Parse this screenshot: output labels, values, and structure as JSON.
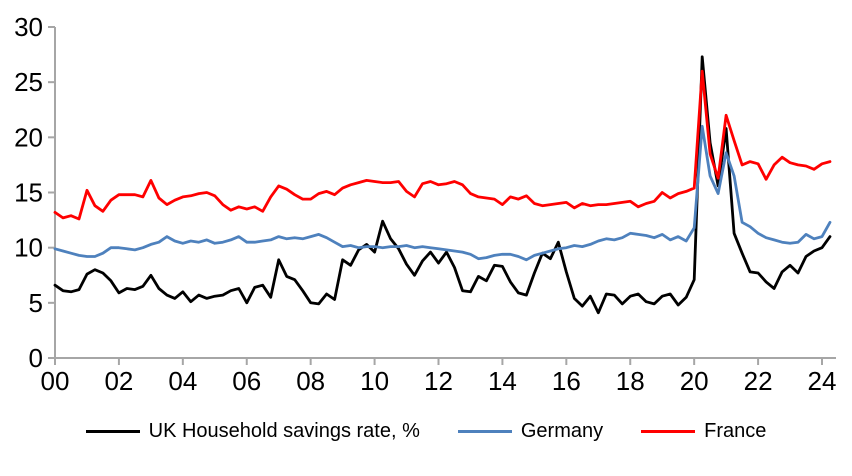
{
  "chart_data": {
    "type": "line",
    "title": "",
    "xlabel": "",
    "ylabel": "",
    "grid": false,
    "legend_position": "bottom",
    "ylim": [
      0,
      30
    ],
    "y_ticks": [
      0,
      5,
      10,
      15,
      20,
      25,
      30
    ],
    "x_tick_labels": [
      "00",
      "02",
      "04",
      "06",
      "08",
      "10",
      "12",
      "14",
      "16",
      "18",
      "20",
      "22",
      "24"
    ],
    "x_start_year": 2000,
    "x_frequency": "quarterly",
    "axis_color": "#a6a6a6",
    "series": [
      {
        "name": "UK Household savings rate, %",
        "color": "#000000",
        "values": [
          6.6,
          6.1,
          6.0,
          6.2,
          7.6,
          8.0,
          7.7,
          7.0,
          5.9,
          6.3,
          6.2,
          6.5,
          7.5,
          6.3,
          5.7,
          5.4,
          6.0,
          5.1,
          5.7,
          5.4,
          5.6,
          5.7,
          6.1,
          6.3,
          5.0,
          6.4,
          6.6,
          5.5,
          8.9,
          7.4,
          7.1,
          6.1,
          5.0,
          4.9,
          5.8,
          5.3,
          8.9,
          8.4,
          9.8,
          10.3,
          9.6,
          12.4,
          10.8,
          9.9,
          8.5,
          7.5,
          8.8,
          9.6,
          8.6,
          9.6,
          8.2,
          6.1,
          6.0,
          7.4,
          7.0,
          8.4,
          8.3,
          6.9,
          5.9,
          5.7,
          7.7,
          9.5,
          9.0,
          10.5,
          7.8,
          5.4,
          4.7,
          5.6,
          4.1,
          5.8,
          5.7,
          4.9,
          5.6,
          5.8,
          5.1,
          4.9,
          5.6,
          5.8,
          4.8,
          5.5,
          7.1,
          27.3,
          19.5,
          15.6,
          20.8,
          11.3,
          9.5,
          7.8,
          7.7,
          6.9,
          6.3,
          7.8,
          8.4,
          7.7,
          9.2,
          9.7,
          10.0,
          11.0
        ]
      },
      {
        "name": "Germany",
        "color": "#4e81bd",
        "values": [
          9.9,
          9.7,
          9.5,
          9.3,
          9.2,
          9.2,
          9.5,
          10.0,
          10.0,
          9.9,
          9.8,
          10.0,
          10.3,
          10.5,
          11.0,
          10.6,
          10.4,
          10.6,
          10.5,
          10.7,
          10.4,
          10.5,
          10.7,
          11.0,
          10.5,
          10.5,
          10.6,
          10.7,
          11.0,
          10.8,
          10.9,
          10.8,
          11.0,
          11.2,
          10.9,
          10.5,
          10.1,
          10.2,
          10.0,
          10.1,
          10.1,
          10.0,
          10.1,
          10.1,
          10.2,
          10.0,
          10.1,
          10.0,
          9.9,
          9.8,
          9.7,
          9.6,
          9.4,
          9.0,
          9.1,
          9.3,
          9.4,
          9.4,
          9.2,
          8.9,
          9.3,
          9.5,
          9.7,
          9.9,
          10.0,
          10.2,
          10.1,
          10.3,
          10.6,
          10.8,
          10.7,
          10.9,
          11.3,
          11.2,
          11.1,
          10.9,
          11.2,
          10.7,
          11.0,
          10.6,
          11.8,
          21.0,
          16.5,
          14.9,
          18.6,
          16.5,
          12.3,
          11.9,
          11.3,
          10.9,
          10.7,
          10.5,
          10.4,
          10.5,
          11.2,
          10.8,
          11.0,
          12.3
        ]
      },
      {
        "name": "France",
        "color": "#ff0000",
        "values": [
          13.2,
          12.7,
          12.9,
          12.6,
          15.2,
          13.8,
          13.3,
          14.3,
          14.8,
          14.8,
          14.8,
          14.6,
          16.1,
          14.5,
          13.9,
          14.3,
          14.6,
          14.7,
          14.9,
          15.0,
          14.7,
          13.9,
          13.4,
          13.7,
          13.5,
          13.7,
          13.3,
          14.6,
          15.6,
          15.3,
          14.8,
          14.4,
          14.4,
          14.9,
          15.1,
          14.8,
          15.4,
          15.7,
          15.9,
          16.1,
          16.0,
          15.9,
          15.9,
          16.0,
          15.1,
          14.6,
          15.8,
          16.0,
          15.7,
          15.8,
          16.0,
          15.7,
          14.9,
          14.6,
          14.5,
          14.4,
          13.9,
          14.6,
          14.4,
          14.7,
          14.0,
          13.8,
          13.9,
          14.0,
          14.1,
          13.6,
          14.0,
          13.8,
          13.9,
          13.9,
          14.0,
          14.1,
          14.2,
          13.7,
          14.0,
          14.2,
          15.0,
          14.5,
          14.9,
          15.1,
          15.4,
          26.0,
          18.5,
          16.3,
          22.0,
          19.7,
          17.5,
          17.8,
          17.6,
          16.2,
          17.5,
          18.2,
          17.7,
          17.5,
          17.4,
          17.1,
          17.6,
          17.8
        ]
      }
    ]
  }
}
